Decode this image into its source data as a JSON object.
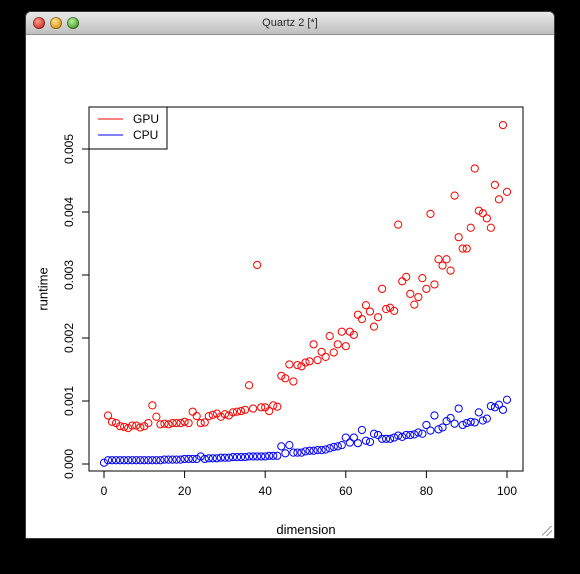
{
  "window": {
    "title": "Quartz 2 [*]"
  },
  "chart_data": {
    "type": "scatter",
    "title": "",
    "xlabel": "dimension",
    "ylabel": "runtime",
    "xlim": [
      0,
      100
    ],
    "ylim": [
      0,
      0.0054
    ],
    "x_ticks": [
      0,
      20,
      40,
      60,
      80,
      100
    ],
    "x_tick_labels": [
      "0",
      "20",
      "40",
      "60",
      "80",
      "100"
    ],
    "y_ticks": [
      0,
      0.001,
      0.002,
      0.003,
      0.004,
      0.005
    ],
    "y_tick_labels": [
      "0.000",
      "0.001",
      "0.002",
      "0.003",
      "0.004",
      "0.005"
    ],
    "grid": false,
    "legend_position": "top-left",
    "marker": "open-circle",
    "series": [
      {
        "name": "GPU",
        "color": "#ff0000",
        "x": [
          1,
          2,
          3,
          4,
          5,
          6,
          7,
          8,
          9,
          10,
          11,
          12,
          13,
          14,
          15,
          16,
          17,
          18,
          19,
          20,
          21,
          22,
          23,
          24,
          25,
          26,
          27,
          28,
          29,
          30,
          31,
          32,
          33,
          34,
          35,
          36,
          37,
          38,
          39,
          40,
          41,
          42,
          43,
          44,
          45,
          46,
          47,
          48,
          49,
          50,
          51,
          52,
          53,
          54,
          55,
          56,
          57,
          58,
          59,
          60,
          61,
          62,
          63,
          64,
          65,
          66,
          67,
          68,
          69,
          70,
          71,
          72,
          73,
          74,
          75,
          76,
          77,
          78,
          79,
          80,
          81,
          82,
          83,
          84,
          85,
          86,
          87,
          88,
          89,
          90,
          91,
          92,
          93,
          94,
          95,
          96,
          97,
          98,
          99,
          100
        ],
        "values": [
          0.00077,
          0.00067,
          0.00065,
          0.0006,
          0.00059,
          0.00057,
          0.00061,
          0.00061,
          0.00058,
          0.0006,
          0.00065,
          0.00093,
          0.00075,
          0.00063,
          0.00064,
          0.00063,
          0.00065,
          0.00065,
          0.00065,
          0.00067,
          0.00065,
          0.00083,
          0.00076,
          0.00065,
          0.00066,
          0.00076,
          0.00078,
          0.0008,
          0.00075,
          0.00079,
          0.00077,
          0.00082,
          0.00083,
          0.00084,
          0.00086,
          0.00125,
          0.00088,
          0.00316,
          0.0009,
          0.0009,
          0.00084,
          0.00093,
          0.00091,
          0.0014,
          0.00136,
          0.00158,
          0.00131,
          0.00157,
          0.00155,
          0.00161,
          0.00163,
          0.0019,
          0.00165,
          0.00178,
          0.0017,
          0.00203,
          0.00177,
          0.0019,
          0.0021,
          0.00187,
          0.0021,
          0.00205,
          0.00237,
          0.0023,
          0.00252,
          0.00242,
          0.00218,
          0.00233,
          0.00278,
          0.00246,
          0.00248,
          0.00243,
          0.0038,
          0.0029,
          0.00297,
          0.0027,
          0.00253,
          0.00265,
          0.00295,
          0.00278,
          0.00397,
          0.00285,
          0.00325,
          0.00315,
          0.00325,
          0.00307,
          0.00426,
          0.0036,
          0.00342,
          0.00342,
          0.00375,
          0.00469,
          0.00402,
          0.00398,
          0.0039,
          0.00375,
          0.00443,
          0.0042,
          0.00538,
          0.00432
        ]
      },
      {
        "name": "CPU",
        "color": "#0000ff",
        "x": [
          0,
          1,
          2,
          3,
          4,
          5,
          6,
          7,
          8,
          9,
          10,
          11,
          12,
          13,
          14,
          15,
          16,
          17,
          18,
          19,
          20,
          21,
          22,
          23,
          24,
          25,
          26,
          27,
          28,
          29,
          30,
          31,
          32,
          33,
          34,
          35,
          36,
          37,
          38,
          39,
          40,
          41,
          42,
          43,
          44,
          45,
          46,
          47,
          48,
          49,
          50,
          51,
          52,
          53,
          54,
          55,
          56,
          57,
          58,
          59,
          60,
          61,
          62,
          63,
          64,
          65,
          66,
          67,
          68,
          69,
          70,
          71,
          72,
          73,
          74,
          75,
          76,
          77,
          78,
          79,
          80,
          81,
          82,
          83,
          84,
          85,
          86,
          87,
          88,
          89,
          90,
          91,
          92,
          93,
          94,
          95,
          96,
          97,
          98,
          99,
          100
        ],
        "values": [
          2e-05,
          6e-05,
          6e-05,
          6e-05,
          6e-05,
          6e-05,
          6e-05,
          6e-05,
          6e-05,
          6e-05,
          6e-05,
          6e-05,
          6e-05,
          6e-05,
          6e-05,
          7e-05,
          7e-05,
          7e-05,
          7e-05,
          7e-05,
          8e-05,
          8e-05,
          8e-05,
          8e-05,
          0.00012,
          8e-05,
          9e-05,
          9e-05,
          9e-05,
          0.0001,
          0.0001,
          0.0001,
          0.00011,
          0.00011,
          0.00011,
          0.00011,
          0.00012,
          0.00012,
          0.00012,
          0.00012,
          0.00012,
          0.00013,
          0.00013,
          0.00013,
          0.00028,
          0.00017,
          0.0003,
          0.00018,
          0.00018,
          0.00018,
          0.0002,
          0.00021,
          0.00021,
          0.00022,
          0.00022,
          0.00023,
          0.00025,
          0.00027,
          0.00028,
          0.0003,
          0.00042,
          0.00034,
          0.00042,
          0.00033,
          0.00054,
          0.00037,
          0.00035,
          0.00048,
          0.00046,
          0.0004,
          0.0004,
          0.0004,
          0.00042,
          0.00045,
          0.00043,
          0.00046,
          0.00046,
          0.00047,
          0.0005,
          0.00048,
          0.00062,
          0.00053,
          0.00077,
          0.00055,
          0.00058,
          0.00068,
          0.00073,
          0.00064,
          0.00088,
          0.00062,
          0.00065,
          0.00067,
          0.00066,
          0.00082,
          0.00069,
          0.00072,
          0.00092,
          0.0009,
          0.00094,
          0.00086,
          0.00102
        ]
      }
    ]
  }
}
